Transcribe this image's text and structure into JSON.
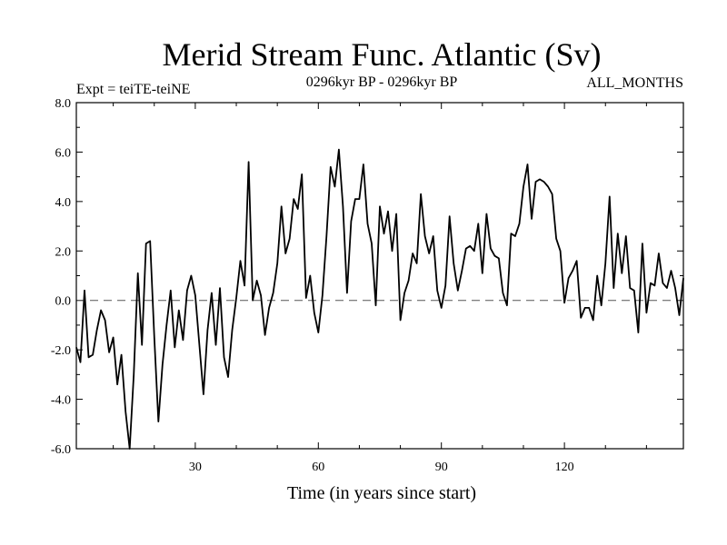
{
  "chart_data": {
    "type": "line",
    "title": "Merid Stream Func. Atlantic (Sv)",
    "left_label": "Expt = teiTE-teiNE",
    "center_label": "0296kyr BP - 0296kyr BP",
    "right_label": "ALL_MONTHS",
    "xlabel": "Time (in years since start)",
    "ylabel": "",
    "xlim": [
      1,
      149
    ],
    "ylim": [
      -6.0,
      8.0
    ],
    "xticks": [
      30,
      60,
      90,
      120
    ],
    "yticks": [
      -6.0,
      -4.0,
      -2.0,
      0.0,
      2.0,
      4.0,
      6.0,
      8.0
    ],
    "ytick_labels": [
      "-6.0",
      "-4.0",
      "-2.0",
      "0.0",
      "2.0",
      "4.0",
      "6.0",
      "8.0"
    ],
    "reference_line": 0.0,
    "colors": {
      "line": "#000000",
      "reference": "#555555"
    },
    "series": [
      {
        "name": "teiTE-teiNE",
        "x": [
          1,
          2,
          3,
          4,
          5,
          6,
          7,
          8,
          9,
          10,
          11,
          12,
          13,
          14,
          15,
          16,
          17,
          18,
          19,
          20,
          21,
          22,
          23,
          24,
          25,
          26,
          27,
          28,
          29,
          30,
          31,
          32,
          33,
          34,
          35,
          36,
          37,
          38,
          39,
          40,
          41,
          42,
          43,
          44,
          45,
          46,
          47,
          48,
          49,
          50,
          51,
          52,
          53,
          54,
          55,
          56,
          57,
          58,
          59,
          60,
          61,
          62,
          63,
          64,
          65,
          66,
          67,
          68,
          69,
          70,
          71,
          72,
          73,
          74,
          75,
          76,
          77,
          78,
          79,
          80,
          81,
          82,
          83,
          84,
          85,
          86,
          87,
          88,
          89,
          90,
          91,
          92,
          93,
          94,
          95,
          96,
          97,
          98,
          99,
          100,
          101,
          102,
          103,
          104,
          105,
          106,
          107,
          108,
          109,
          110,
          111,
          112,
          113,
          114,
          115,
          116,
          117,
          118,
          119,
          120,
          121,
          122,
          123,
          124,
          125,
          126,
          127,
          128,
          129,
          130,
          131,
          132,
          133,
          134,
          135,
          136,
          137,
          138,
          139,
          140,
          141,
          142,
          143,
          144,
          145,
          146,
          147,
          148,
          149
        ],
        "values": [
          -1.9,
          -2.5,
          0.4,
          -2.3,
          -2.2,
          -1.2,
          -0.4,
          -0.8,
          -2.1,
          -1.5,
          -3.4,
          -2.2,
          -4.5,
          -6.0,
          -3.0,
          1.1,
          -1.8,
          2.3,
          2.4,
          -1.5,
          -4.9,
          -2.6,
          -1.0,
          0.4,
          -1.9,
          -0.4,
          -1.6,
          0.4,
          1.0,
          0.2,
          -1.8,
          -3.8,
          -1.2,
          0.3,
          -1.8,
          0.5,
          -2.3,
          -3.1,
          -1.2,
          0.1,
          1.6,
          0.6,
          5.6,
          0.0,
          0.8,
          0.2,
          -1.4,
          -0.3,
          0.3,
          1.5,
          3.8,
          1.9,
          2.5,
          4.1,
          3.7,
          5.1,
          0.1,
          1.0,
          -0.5,
          -1.3,
          0.2,
          2.6,
          5.4,
          4.6,
          6.1,
          3.8,
          0.3,
          3.2,
          4.1,
          4.1,
          5.5,
          3.1,
          2.3,
          -0.2,
          3.8,
          2.7,
          3.6,
          2.0,
          3.5,
          -0.8,
          0.3,
          0.8,
          1.9,
          1.5,
          4.3,
          2.6,
          1.9,
          2.6,
          0.4,
          -0.3,
          0.6,
          3.4,
          1.5,
          0.4,
          1.2,
          2.1,
          2.2,
          2.0,
          3.1,
          1.1,
          3.5,
          2.1,
          1.8,
          1.7,
          0.3,
          -0.2,
          2.7,
          2.6,
          3.1,
          4.6,
          5.5,
          3.3,
          4.8,
          4.9,
          4.8,
          4.6,
          4.3,
          2.5,
          2.0,
          -0.1,
          0.9,
          1.2,
          1.6,
          -0.7,
          -0.3,
          -0.3,
          -0.8,
          1.0,
          -0.2,
          1.5,
          4.2,
          0.5,
          2.7,
          1.1,
          2.6,
          0.5,
          0.4,
          -1.3,
          2.3,
          -0.5,
          0.7,
          0.6,
          1.9,
          0.7,
          0.5,
          1.2,
          0.5,
          -0.6,
          0.9
        ]
      }
    ]
  }
}
